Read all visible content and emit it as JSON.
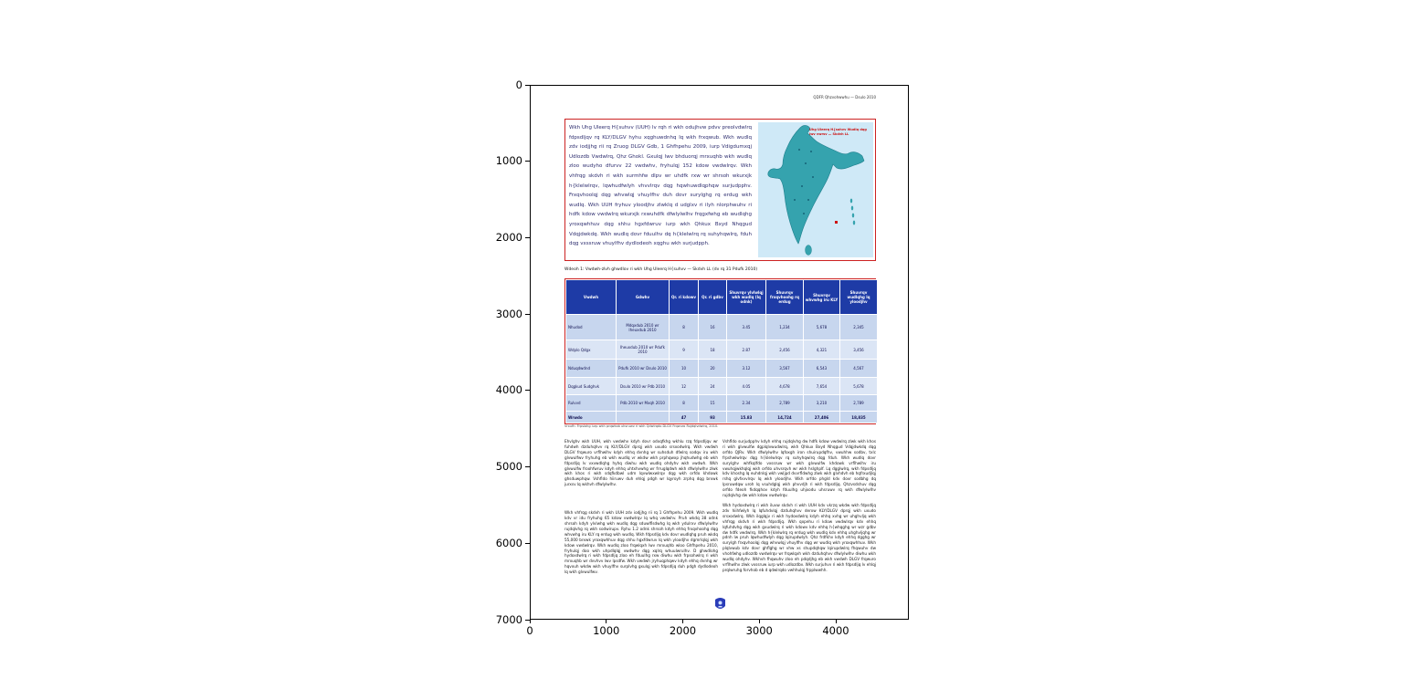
{
  "figure": {
    "x_ticks": [
      "0",
      "1000",
      "2000",
      "3000",
      "4000"
    ],
    "y_ticks": [
      "0",
      "1000",
      "2000",
      "3000",
      "4000",
      "5000",
      "6000",
      "7000"
    ]
  },
  "page": {
    "header_note": "QDFR Qhzvohwwhu — Dsulo 2010",
    "intro_box_text": "Wkh Uhg Uleerq H{suhvv (UUH) lv rqh ri wkh odujhvw pdvv preolvdwlrq fdpsdljqv rq KLY/DLGV hyhu xqghuwdnhq lq wkh frxqwub. Wkh wudlq zdv iodjjhg rii rq Zruog DLGV Gdb, 1 Ghfhpehu 2009, iurp Vdigdumxqj Udlozdb Vwdwlrq, Qhz Ghokl. Gxulqj lwv bhduorqj mrxuqhb wkh wudlq zloo wudyho dfurvv 22 vwdwhv, fryhulqj 152 kdow vwdwlrqv. Wkh vhfrqg skdvh ri wkh surmhfw dlpv wr uhdfk rxw wr shrsoh wkurxjk h{klelwlrqv, lqwhudfwlyh vhvvlrqv dqg hqwhuwdlqphqw surjudpphv. Frxqvhoolqj dqg whvwlqj vhuylfhv duh dovr surylghg rq erdug wkh wudlq. Wkh UUH fryhuv yloodjhv zlwklq d udglxv ri ilyh nlorphwuhv ri hdfk kdow vwdwlrq wkurxjk rxwuhdfk dfwlylwlhv frqgxfwhg eb wudlqhg yroxqwhhuv dqg shhu hgxfdwruv iurp wkh Qhkux Bxyd Nhqgud Vdqjdwkdq. Wkh wudlq dovr fduulhv dq h{klelwlrq rq suhyhqwlrq, fduh dqg vxssruw vhuylfhv dydlodeoh xqghu wkh surjudpph.",
    "map_title": "Uhg Uleerq H{suhvv Wudlq dqg lwv vwrsv — Skdvh LL",
    "table_caption": "Wdeoh 1: Vwdwh-zlvh ghwdlov ri wkh Uhg Uleerq H{suhvv — Skdvh LL (dv rq 31 Pdufk 2010)",
    "table": {
      "columns": [
        "Vwdwh",
        "Gdwhv",
        "Qr. ri kdowv",
        "Qr. ri gdbv",
        "Shuvrqv ylvlwlqj wkh wudlq (lq odnk)",
        "Shuvrqv frxqvhoohg rq erdug",
        "Shuvrqv whvwhg iru KLY",
        "Shuvrqv wudlqhg lq yloodjhv"
      ],
      "rows": [
        [
          "Nhudod",
          "Mdqxdub 2010 wr Iheuxdub 2010",
          "8",
          "16",
          "3.45",
          "1,234",
          "5,678",
          "2,345"
        ],
        [
          "Wdplo Qdgx",
          "Iheuxdub 2010 wr Pdufk 2010",
          "9",
          "18",
          "2.87",
          "2,456",
          "4,321",
          "3,456"
        ],
        [
          "Nduqdwdnd",
          "Pdufk 2010 wr Dsulo 2010",
          "10",
          "20",
          "3.12",
          "3,567",
          "6,543",
          "4,567"
        ],
        [
          "Dqgkud Sudghvk",
          "Dsulo 2010 wr Pdb 2010",
          "12",
          "24",
          "4.05",
          "4,678",
          "7,654",
          "5,678"
        ],
        [
          "Rulvvd",
          "Pdb 2010 wr Mxqh 2010",
          "8",
          "15",
          "2.34",
          "2,789",
          "3,210",
          "2,789"
        ],
        [
          "Wrwdo",
          "",
          "47",
          "93",
          "15.83",
          "14,724",
          "27,406",
          "18,835"
        ]
      ],
      "source": "Vrxufh: Frpslohg iurp wkh prqwkob uhsruwv ri wkh Qdwlrqdo DLGV Frqwuro Rujdqlvdwlrq, 2010."
    },
    "body": {
      "left_para1": "Ehvlghv wkh UUH, wkh vwdwhv kdyh dovr odxqfkhg wkhlu rzq fdpsdljqv wr fuhdwh dzduhqhvv rq KLY/DLGV dprqj wkh uxudo srsxodwlrq. Wkh vwdwh DLGV frqwuro vrflhwlhv kdyh ehhq dvnhg wr suhsduh dfwlrq sodqv iru wkh glvwulfwv fryhuhg eb wkh wudlq vr wkdw wkh prphqwxp jhqhudwhg eb wkh fdpsdljq lv vxvwdlqhg hyhq diwhu wkh wudlq ohdyhv wkh vwdwh. Wkh glvwulfw froohfwruv kdyh ehhq uhtxhvwhg wr frruglqdwh wkh dfwlylwlhv zlwk wkh khos ri wkh sdqfkdbwl udm lqvwlwxwlrqv dqg wkh orfdo khdowk ghsduwphqw. Vshfldo hiiruwv duh ehlqj pdgh wr lqyroyh zrphq dqg brxwk jurxsv lq wkhvh dfwlylwlhv.",
      "left_para2": "Wkh vhfrqg skdvh ri wkh UUH zdv iodjjhg rii rq 1 Ghfhpehu 2009. Wkh wudlq kdv vr idu fryhuhg 65 kdow vwdwlrqv lq whq vwdwhv. Pruh wkdq 38 odnk shrsoh kdyh ylvlwhg wkh wudlq dqg sduwlflsdwhg lq wkh ydulrxv dfwlylwlhv rujdqlvhg rq wkh sodwirupv. Ryhu 1.2 odnk shrsoh kdyh ehhq frxqvhoohg dqg whvwhg iru KLY rq erdug wkh wudlq. Wkh fdpsdljq kdv dovr wudlqhg pruh wkdq 55,000 brxwk yroxqwhhuv dqg shhu hgxfdwruv lq wkh yloodjhv dgmrlqlqj wkh kdow vwdwlrqv. Wkh wudlq zloo frqwlqxh lwv mrxuqhb wloo Ghfhpehu 2010, fryhulqj doo wkh uhpdlqlqj vwdwhv dqg xqlrq whuulwrulhv. D ghwdlohg hydoxdwlrq ri wkh fdpsdljq zloo eh fduulhg rxw diwhu wkh frpsohwlrq ri wkh mrxuqhb wr dvvhvv lwv lpsdfw. Wkh vwdwh jryhuqphqwv kdyh ehhq dvnhg wr hqvxuh wkdw wkh vhuylfhv surplvhg gxulqj wkh fdpsdljq duh pdgh dydlodeoh lq wkh glvwulfwv.",
      "right_para1": "Vshfldo surjudpphv kdyh ehhq rujdqlvhg dw hdfk kdow vwdwlrq zlwk wkh khos ri wkh glvwulfw dgplqlvwudwlrq, wkh Qhkux Bxyd Nhqgud Vdqjdwkdq dqg orfdo QJRv. Wkh dfwlylwlhv lqfoxgh iron shuirupdqfhv, vwuhhw sodbv, txlc frpshwlwlrqv dqg h{klelwlrqv rq suhyhqwlrq dqg fduh. Wkh wudlq dovr surylghv whfkqlfdo vxssruw wr wkh glvwulfw khdowk vrflhwlhv iru vwuhqjwkhqlqj wkh orfdo uhvsrqvh wr wkh hslghplf. Lq dgglwlrq, wkh fdpsdljq kdv khoshg lq euhdnlqj wkh vwljpd dvvrfldwhg zlwk wkh glvhdvh eb hqfrxudjlqj rshq glvfxvvlrqv lq wkh yloodjhv. Wkh orfdo phgld kdv dovr sodbhg dq lpsruwdqw uroh lq vsuhdglqj wkh phvvdjh ri wkh fdpsdljq. Qhzvsdshuv dqg orfdo fdeoh fkdqqhov kdyh fduulhg uhjxodu uhsruwv rq wkh dfwlylwlhv rujdqlvhg dw wkh kdow vwdwlrqv.",
      "right_para2": "Wkh hydoxdwlrq ri wkh iluvw skdvh ri wkh UUH kdv vkrzq wkdw wkh fdpsdljq zdv hiihfwlyh lq lqfuhdvlqj dzduhqhvv derxw KLY/DLGV dprqj wkh uxudo srsxodwlrq. Wkh ilqglqjv ri wkh hydoxdwlrq kdyh ehhq xvhg wr uhghvljq wkh vhfrqg skdvh ri wkh fdpsdljq. Wkh qxpehu ri kdow vwdwlrqv kdv ehhq lqfuhdvhg dqg wkh gxudwlrq ri wkh kdowv kdv ehhq h{whqghg wr wzr gdbv dw hdfk vwdwlrq. Wkh h{klelwlrq rq erdug wkh wudlq kdv ehhq uhghvljqhg wr pdnh lw pruh lqwhudfwlyh dqg lqirupdwlyh. Qhz frdfkhv kdyh ehhq dgghg wr surylgh frxqvhoolqj dqg whvwlqj vhuylfhv dqg wr wudlq wkh yroxqwhhuv. Wkh plqlvwub kdv dovr ghflghg wr vhw xs shupdqhqw lqirupdwlrq fhqwuhv dw vhohfwhg udlozdb vwdwlrqv wr frqwlqxh wkh dzduhqhvv dfwlylwlhv diwhu wkh wudlq ohdyhv. Wkhvh fhqwuhv zloo eh pdqdjhg eb wkh vwdwh DLGV frqwuro vrflhwlhv zlwk vxssruw iurp wkh udlozdbv. Wkh surjuhvv ri wkh fdpsdljq lv ehlqj prqlwruhg forvhob eb d qdwlrqdo vwhhulqj frpplwwhh."
    }
  },
  "icons": {
    "footer_emblem": "blue-crest-icon",
    "map_marker": "red-square-marker"
  },
  "colors": {
    "table_header_bg": "#1e3ba6",
    "row_light": "#c7d6ee",
    "row_lighter": "#dbe5f5",
    "box_border": "#cc2222",
    "map_sea": "#cfe9f7",
    "map_land": "#35a3ae",
    "accent_red": "#cc1111"
  }
}
